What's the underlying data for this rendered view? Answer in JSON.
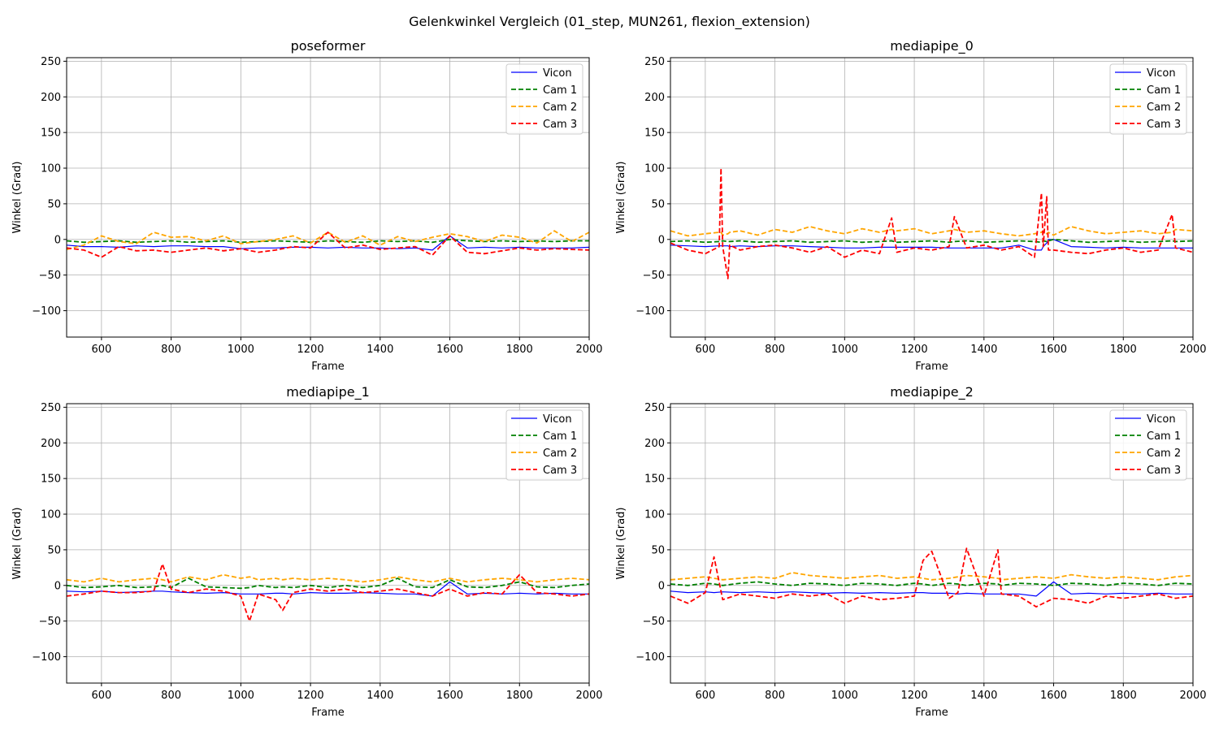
{
  "figure": {
    "suptitle": "Gelenkwinkel Vergleich (01_step, MUN261, flexion_extension)"
  },
  "colors": {
    "Vicon": "#0000ff",
    "Cam 1": "#008000",
    "Cam 2": "#ffa500",
    "Cam 3": "#ff0000",
    "grid": "#b0b0b0"
  },
  "chart_data": [
    {
      "type": "line",
      "title": "poseformer",
      "xlabel": "Frame",
      "ylabel": "Winkel (Grad)",
      "xlim": [
        500,
        2000
      ],
      "ylim": [
        -137,
        255
      ],
      "xticks": [
        600,
        800,
        1000,
        1200,
        1400,
        1600,
        1800,
        2000
      ],
      "yticks": [
        -100,
        -50,
        0,
        50,
        100,
        150,
        200,
        250
      ],
      "grid": true,
      "legend": "top-right",
      "x": [
        500,
        550,
        600,
        650,
        700,
        750,
        800,
        850,
        900,
        950,
        1000,
        1050,
        1100,
        1150,
        1200,
        1250,
        1300,
        1350,
        1400,
        1450,
        1500,
        1550,
        1600,
        1650,
        1700,
        1750,
        1800,
        1850,
        1900,
        1950,
        2000
      ],
      "series": [
        {
          "name": "Vicon",
          "style": "solid",
          "values": [
            -8,
            -10,
            -10,
            -11,
            -9,
            -10,
            -9,
            -9,
            -10,
            -10,
            -13,
            -12,
            -12,
            -11,
            -11,
            -12,
            -11,
            -12,
            -12,
            -13,
            -12,
            -15,
            5,
            -12,
            -11,
            -12,
            -11,
            -12,
            -12,
            -12,
            -11
          ]
        },
        {
          "name": "Cam 1",
          "style": "dashed",
          "values": [
            -2,
            -4,
            -3,
            -2,
            -4,
            -3,
            -2,
            -4,
            -3,
            -2,
            -4,
            -3,
            -2,
            -3,
            -4,
            -2,
            -3,
            -4,
            -2,
            -3,
            -2,
            -4,
            0,
            -2,
            -3,
            -2,
            -3,
            -2,
            -3,
            -2,
            -2
          ]
        },
        {
          "name": "Cam 2",
          "style": "dashed",
          "values": [
            -14,
            -8,
            5,
            -3,
            -6,
            10,
            3,
            4,
            -2,
            5,
            -6,
            -3,
            0,
            5,
            -5,
            10,
            -4,
            5,
            -8,
            4,
            -3,
            3,
            8,
            4,
            -3,
            6,
            3,
            -5,
            12,
            -3,
            10
          ]
        },
        {
          "name": "Cam 3",
          "style": "dashed",
          "values": [
            -12,
            -15,
            -25,
            -10,
            -16,
            -15,
            -18,
            -15,
            -12,
            -16,
            -13,
            -18,
            -15,
            -10,
            -12,
            10,
            -12,
            -8,
            -14,
            -12,
            -10,
            -22,
            5,
            -18,
            -20,
            -16,
            -12,
            -15,
            -13,
            -14,
            -15
          ]
        }
      ]
    },
    {
      "type": "line",
      "title": "mediapipe_0",
      "xlabel": "Frame",
      "ylabel": "Winkel (Grad)",
      "xlim": [
        500,
        2000
      ],
      "ylim": [
        -137,
        255
      ],
      "xticks": [
        600,
        800,
        1000,
        1200,
        1400,
        1600,
        1800,
        2000
      ],
      "yticks": [
        -100,
        -50,
        0,
        50,
        100,
        150,
        200,
        250
      ],
      "grid": true,
      "legend": "top-right",
      "x": [
        500,
        550,
        600,
        640,
        645,
        650,
        665,
        670,
        700,
        750,
        800,
        850,
        900,
        950,
        1000,
        1050,
        1100,
        1135,
        1150,
        1200,
        1250,
        1300,
        1315,
        1350,
        1400,
        1450,
        1500,
        1545,
        1565,
        1570,
        1580,
        1585,
        1600,
        1650,
        1700,
        1750,
        1800,
        1850,
        1900,
        1940,
        1950,
        2000
      ],
      "series": [
        {
          "name": "Vicon",
          "style": "solid",
          "values": [
            -8,
            -9,
            -10,
            -9,
            -9,
            -9,
            -9,
            -10,
            -9,
            -10,
            -9,
            -9,
            -10,
            -11,
            -12,
            -12,
            -11,
            -11,
            -11,
            -11,
            -11,
            -12,
            -12,
            -12,
            -12,
            -12,
            -8,
            -15,
            -15,
            -10,
            -5,
            0,
            0,
            -10,
            -11,
            -12,
            -11,
            -12,
            -12,
            -12,
            -12,
            -12
          ]
        },
        {
          "name": "Cam 1",
          "style": "dashed",
          "values": [
            -3,
            -2,
            -4,
            -3,
            -3,
            -2,
            -3,
            -3,
            -2,
            -4,
            -3,
            -2,
            -4,
            -3,
            -2,
            -4,
            -3,
            -2,
            -4,
            -3,
            -2,
            -4,
            -3,
            -2,
            -4,
            -3,
            -2,
            -3,
            -4,
            -2,
            -3,
            -2,
            0,
            -2,
            -4,
            -3,
            -2,
            -4,
            -3,
            -2,
            -3,
            -2
          ]
        },
        {
          "name": "Cam 2",
          "style": "dashed",
          "values": [
            12,
            5,
            8,
            10,
            10,
            6,
            8,
            10,
            12,
            6,
            14,
            10,
            18,
            12,
            8,
            15,
            10,
            14,
            12,
            15,
            8,
            12,
            14,
            10,
            12,
            8,
            5,
            8,
            10,
            12,
            8,
            10,
            6,
            18,
            12,
            8,
            10,
            12,
            8,
            10,
            14,
            12
          ]
        },
        {
          "name": "Cam 3",
          "style": "dashed",
          "values": [
            -5,
            -15,
            -20,
            -10,
            100,
            -10,
            -55,
            -8,
            -15,
            -10,
            -8,
            -12,
            -18,
            -10,
            -25,
            -15,
            -20,
            30,
            -18,
            -12,
            -15,
            -10,
            32,
            -12,
            -8,
            -15,
            -10,
            -25,
            65,
            -10,
            60,
            -15,
            -15,
            -18,
            -20,
            -15,
            -12,
            -18,
            -15,
            35,
            -12,
            -18
          ]
        }
      ]
    },
    {
      "type": "line",
      "title": "mediapipe_1",
      "xlabel": "Frame",
      "ylabel": "Winkel (Grad)",
      "xlim": [
        500,
        2000
      ],
      "ylim": [
        -137,
        255
      ],
      "xticks": [
        600,
        800,
        1000,
        1200,
        1400,
        1600,
        1800,
        2000
      ],
      "yticks": [
        -100,
        -50,
        0,
        50,
        100,
        150,
        200,
        250
      ],
      "grid": true,
      "legend": "top-right",
      "x": [
        500,
        550,
        600,
        650,
        700,
        750,
        775,
        800,
        850,
        900,
        950,
        1000,
        1025,
        1050,
        1100,
        1120,
        1150,
        1200,
        1250,
        1300,
        1350,
        1400,
        1450,
        1500,
        1550,
        1600,
        1650,
        1700,
        1750,
        1800,
        1850,
        1900,
        1950,
        2000
      ],
      "series": [
        {
          "name": "Vicon",
          "style": "solid",
          "values": [
            -8,
            -9,
            -8,
            -10,
            -9,
            -8,
            -8,
            -9,
            -10,
            -11,
            -10,
            -12,
            -12,
            -12,
            -11,
            -11,
            -12,
            -10,
            -11,
            -11,
            -10,
            -11,
            -12,
            -12,
            -15,
            5,
            -12,
            -11,
            -12,
            -11,
            -12,
            -11,
            -12,
            -12
          ]
        },
        {
          "name": "Cam 1",
          "style": "dashed",
          "values": [
            0,
            -3,
            -2,
            0,
            -3,
            -2,
            0,
            -3,
            10,
            -2,
            -3,
            -4,
            -3,
            0,
            -3,
            -2,
            -3,
            0,
            -3,
            0,
            -3,
            0,
            10,
            -2,
            -3,
            8,
            -2,
            -3,
            0,
            5,
            -2,
            -3,
            0,
            2
          ]
        },
        {
          "name": "Cam 2",
          "style": "dashed",
          "values": [
            8,
            5,
            10,
            5,
            8,
            10,
            8,
            5,
            12,
            8,
            15,
            10,
            12,
            8,
            10,
            8,
            10,
            8,
            10,
            8,
            5,
            8,
            12,
            8,
            5,
            10,
            5,
            8,
            10,
            8,
            5,
            8,
            10,
            8
          ]
        },
        {
          "name": "Cam 3",
          "style": "dashed",
          "values": [
            -15,
            -12,
            -8,
            -10,
            -10,
            -8,
            30,
            -5,
            -10,
            -5,
            -8,
            -15,
            -50,
            -12,
            -20,
            -35,
            -10,
            -5,
            -8,
            -5,
            -10,
            -8,
            -5,
            -10,
            -15,
            -5,
            -15,
            -10,
            -12,
            15,
            -10,
            -12,
            -15,
            -12
          ]
        }
      ]
    },
    {
      "type": "line",
      "title": "mediapipe_2",
      "xlabel": "Frame",
      "ylabel": "Winkel (Grad)",
      "xlim": [
        500,
        2000
      ],
      "ylim": [
        -137,
        255
      ],
      "xticks": [
        600,
        800,
        1000,
        1200,
        1400,
        1600,
        1800,
        2000
      ],
      "yticks": [
        -100,
        -50,
        0,
        50,
        100,
        150,
        200,
        250
      ],
      "grid": true,
      "legend": "top-right",
      "x": [
        500,
        550,
        600,
        625,
        650,
        700,
        750,
        800,
        850,
        900,
        950,
        1000,
        1050,
        1100,
        1150,
        1200,
        1225,
        1250,
        1300,
        1325,
        1350,
        1400,
        1440,
        1450,
        1500,
        1550,
        1600,
        1650,
        1700,
        1750,
        1800,
        1850,
        1900,
        1950,
        2000
      ],
      "series": [
        {
          "name": "Vicon",
          "style": "solid",
          "values": [
            -8,
            -10,
            -9,
            -10,
            -9,
            -10,
            -9,
            -10,
            -9,
            -10,
            -11,
            -10,
            -11,
            -10,
            -11,
            -10,
            -10,
            -11,
            -11,
            -12,
            -11,
            -12,
            -12,
            -12,
            -12,
            -15,
            5,
            -12,
            -11,
            -12,
            -11,
            -12,
            -11,
            -12,
            -12
          ]
        },
        {
          "name": "Cam 1",
          "style": "dashed",
          "values": [
            2,
            0,
            3,
            2,
            0,
            3,
            5,
            2,
            0,
            3,
            2,
            0,
            3,
            2,
            0,
            3,
            2,
            0,
            3,
            2,
            0,
            3,
            2,
            0,
            3,
            2,
            0,
            3,
            2,
            0,
            3,
            2,
            0,
            3,
            2
          ]
        },
        {
          "name": "Cam 2",
          "style": "dashed",
          "values": [
            8,
            10,
            12,
            10,
            8,
            10,
            12,
            10,
            18,
            14,
            12,
            10,
            12,
            14,
            10,
            12,
            10,
            8,
            10,
            12,
            14,
            12,
            10,
            8,
            10,
            12,
            10,
            15,
            12,
            10,
            12,
            10,
            8,
            12,
            14
          ]
        },
        {
          "name": "Cam 3",
          "style": "dashed",
          "values": [
            -15,
            -25,
            -10,
            40,
            -20,
            -12,
            -15,
            -18,
            -12,
            -15,
            -12,
            -25,
            -15,
            -20,
            -18,
            -15,
            35,
            48,
            -18,
            -10,
            52,
            -15,
            50,
            -12,
            -15,
            -30,
            -18,
            -20,
            -25,
            -15,
            -18,
            -15,
            -12,
            -18,
            -15
          ]
        }
      ]
    }
  ]
}
